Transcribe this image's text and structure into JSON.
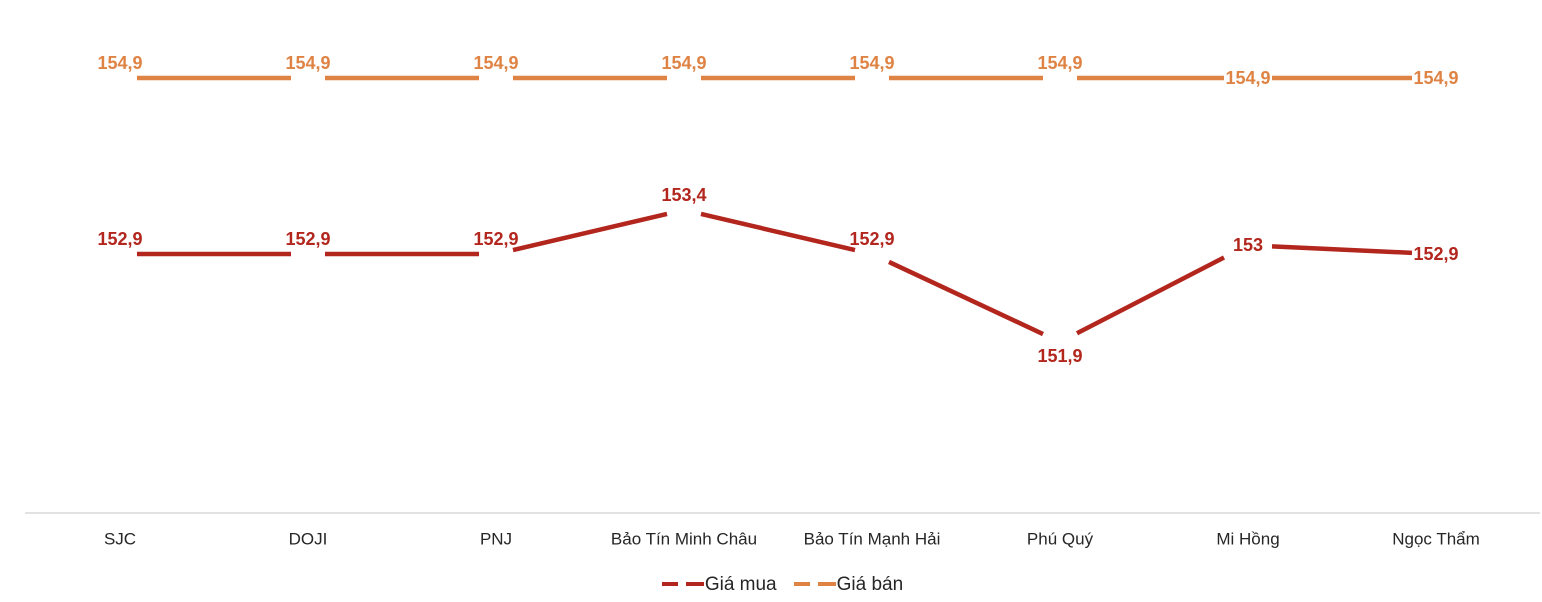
{
  "chart_data": {
    "type": "line",
    "categories": [
      "SJC",
      "DOJI",
      "PNJ",
      "Bảo Tín Minh Châu",
      "Bảo Tín Mạnh Hải",
      "Phú Quý",
      "Mi Hồng",
      "Ngọc Thẩm"
    ],
    "series": [
      {
        "name": "Giá mua",
        "color": "#B2261D",
        "values": [
          152.9,
          152.9,
          152.9,
          153.4,
          152.9,
          151.9,
          153,
          152.9
        ],
        "labels": [
          "152,9",
          "152,9",
          "152,9",
          "153,4",
          "152,9",
          "151,9",
          "153",
          "152,9"
        ],
        "label_positions": [
          "above",
          "above",
          "above",
          "above",
          "above",
          "below",
          "center",
          "center"
        ]
      },
      {
        "name": "Giá bán",
        "color": "#DF8344",
        "values": [
          154.9,
          154.9,
          154.9,
          154.9,
          154.9,
          154.9,
          154.9,
          154.9
        ],
        "labels": [
          "154,9",
          "154,9",
          "154,9",
          "154,9",
          "154,9",
          "154,9",
          "154,9",
          "154,9"
        ],
        "label_positions": [
          "above",
          "above",
          "above",
          "above",
          "above",
          "above",
          "center",
          "center"
        ]
      }
    ],
    "y_axis": {
      "visible": false
    },
    "x_axis": {
      "visible": true,
      "line_color": "#D9D9D9",
      "label_color": "#262626"
    },
    "legend": {
      "position": "bottom",
      "text_color": "#262626"
    },
    "grid": false,
    "background": "#FFFFFF",
    "data_labels": "shown, colored per series, decimal comma format"
  }
}
